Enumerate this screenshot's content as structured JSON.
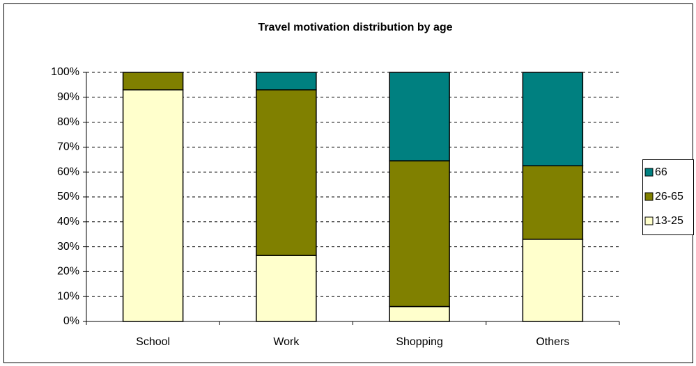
{
  "chart_data": {
    "type": "stacked_bar",
    "title": "Travel motivation distribution by age",
    "categories": [
      "School",
      "Work",
      "Shopping",
      "Others"
    ],
    "series": [
      {
        "name": "13-25",
        "color": "#ffffcc",
        "values": [
          93,
          26.5,
          6,
          33
        ]
      },
      {
        "name": "26-65",
        "color": "#808000",
        "values": [
          7,
          66.5,
          58.5,
          29.5
        ]
      },
      {
        "name": "66",
        "color": "#008080",
        "values": [
          0,
          7,
          35.5,
          37.5
        ]
      }
    ],
    "ylim": [
      0,
      100
    ],
    "yticks": [
      {
        "value": 0,
        "label": "0%"
      },
      {
        "value": 10,
        "label": "10%"
      },
      {
        "value": 20,
        "label": "20%"
      },
      {
        "value": 30,
        "label": "30%"
      },
      {
        "value": 40,
        "label": "40%"
      },
      {
        "value": 50,
        "label": "50%"
      },
      {
        "value": 60,
        "label": "60%"
      },
      {
        "value": 70,
        "label": "70%"
      },
      {
        "value": 80,
        "label": "80%"
      },
      {
        "value": 90,
        "label": "90%"
      },
      {
        "value": 100,
        "label": "100%"
      }
    ],
    "grid": true,
    "legend": "right"
  }
}
